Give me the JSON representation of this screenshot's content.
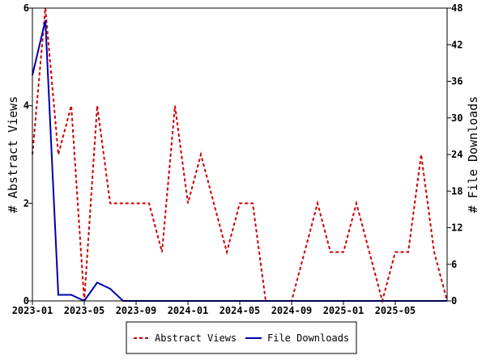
{
  "chart_data": {
    "type": "line",
    "x": [
      "2023-01",
      "2023-02",
      "2023-03",
      "2023-04",
      "2023-05",
      "2023-06",
      "2023-07",
      "2023-08",
      "2023-09",
      "2023-10",
      "2023-11",
      "2023-12",
      "2024-01",
      "2024-02",
      "2024-03",
      "2024-04",
      "2024-05",
      "2024-06",
      "2024-07",
      "2024-08",
      "2024-09",
      "2024-10",
      "2024-11",
      "2024-12",
      "2025-01",
      "2025-02",
      "2025-03",
      "2025-04",
      "2025-05",
      "2025-06",
      "2025-07",
      "2025-08",
      "2025-09"
    ],
    "x_ticks": [
      "2023-01",
      "2023-05",
      "2023-09",
      "2024-01",
      "2024-05",
      "2024-09",
      "2025-01",
      "2025-05"
    ],
    "series": [
      {
        "name": "Abstract Views",
        "axis": "left",
        "color": "#cc0000",
        "style": "dashed",
        "values": [
          3,
          6,
          3,
          4,
          0,
          4,
          2,
          2,
          2,
          2,
          1,
          4,
          2,
          3,
          2,
          1,
          2,
          2,
          0,
          0,
          0,
          1,
          2,
          1,
          1,
          2,
          1,
          0,
          1,
          1,
          3,
          1,
          0
        ]
      },
      {
        "name": "File Downloads",
        "axis": "right",
        "color": "#0000aa",
        "style": "solid",
        "values": [
          37,
          46,
          1,
          1,
          0,
          3,
          2,
          0,
          0,
          0,
          0,
          0,
          0,
          0,
          0,
          0,
          0,
          0,
          0,
          0,
          0,
          0,
          0,
          0,
          0,
          0,
          0,
          0,
          0,
          0,
          0,
          0,
          0
        ]
      }
    ],
    "y_left": {
      "label": "# Abstract Views",
      "ylim": [
        0,
        6
      ],
      "ticks": [
        0,
        2,
        4,
        6
      ]
    },
    "y_right": {
      "label": "# File Downloads",
      "ylim": [
        0,
        48
      ],
      "ticks": [
        0,
        6,
        12,
        18,
        24,
        30,
        36,
        42,
        48
      ]
    },
    "grid": false,
    "legend_position": "bottom-center"
  }
}
